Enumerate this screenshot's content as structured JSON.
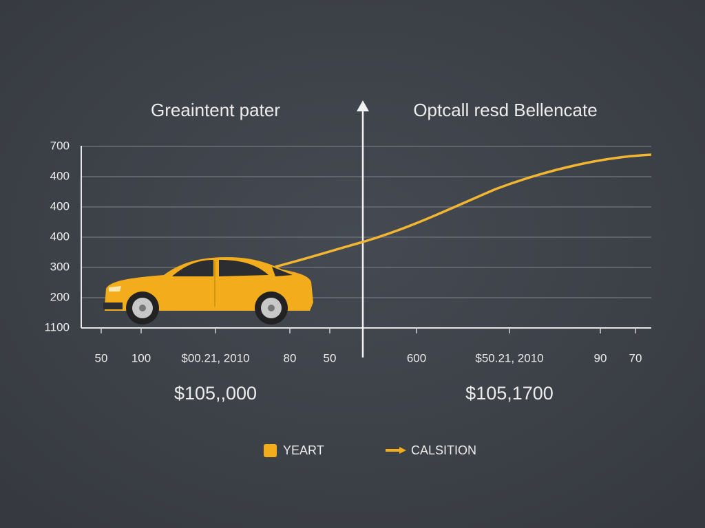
{
  "left_title": "Greaintent pater",
  "right_title": "Optcall resd Bellencate",
  "y_labels": [
    "700",
    "400",
    "400",
    "400",
    "300",
    "200",
    "1100"
  ],
  "x_labels": [
    "50",
    "100",
    "$00.21, 2010",
    "80",
    "50",
    "600",
    "$50.21, 2010",
    "90",
    "70"
  ],
  "amounts": [
    "$105,,000",
    "$105,1700"
  ],
  "legend": [
    "YEART",
    "CALSITION"
  ]
}
